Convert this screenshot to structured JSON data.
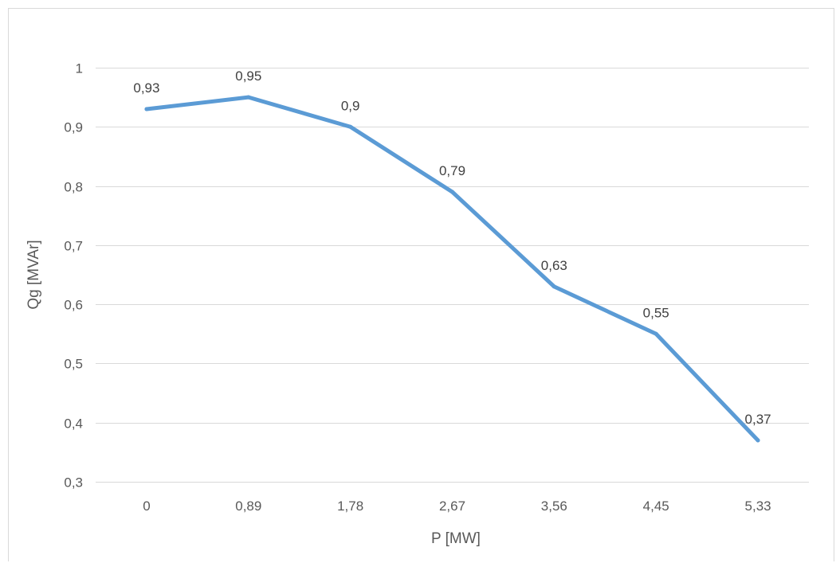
{
  "chart_data": {
    "type": "line",
    "title": "",
    "xlabel": "P [MW]",
    "ylabel": "Qg [MVAr]",
    "categories": [
      "0",
      "0,89",
      "1,78",
      "2,67",
      "3,56",
      "4,45",
      "5,33"
    ],
    "series": [
      {
        "values": [
          0.93,
          0.95,
          0.9,
          0.79,
          0.63,
          0.55,
          0.37
        ],
        "data_labels": [
          "0,93",
          "0,95",
          "0,9",
          "0,79",
          "0,63",
          "0,55",
          "0,37"
        ],
        "color": "#5b9bd5"
      }
    ],
    "ylim": [
      0.3,
      1.0
    ],
    "y_ticks": [
      0.3,
      0.4,
      0.5,
      0.6,
      0.7,
      0.8,
      0.9,
      1.0
    ],
    "y_tick_labels": [
      "0,3",
      "0,4",
      "0,5",
      "0,6",
      "0,7",
      "0,8",
      "0,9",
      "1"
    ],
    "grid": true,
    "legend": "none"
  }
}
